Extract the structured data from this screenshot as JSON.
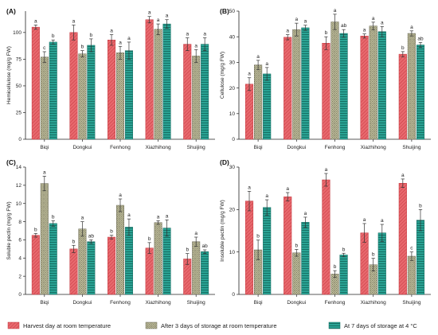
{
  "colors": {
    "harvest": "#e8696e",
    "harvest_line": "#c2333a",
    "room3": "#c9c8a2",
    "room3_line": "#6f6d5a",
    "cold7": "#2aa394",
    "cold7_line": "#136b60"
  },
  "legend": {
    "items": [
      {
        "label": "Harvest day at room temperature"
      },
      {
        "label": "After 3 days of storage at room temperature"
      },
      {
        "label": "At 7 days of storage at 4 °C"
      }
    ]
  },
  "chart_data": [
    {
      "panel": "(A)",
      "type": "bar",
      "ylabel": "Hemicellulose (mg/g FW)",
      "ylim": [
        0,
        120
      ],
      "yticks": [
        0,
        25,
        50,
        75,
        100
      ],
      "categories": [
        "Biqi",
        "Dongkui",
        "Fenhong",
        "Xiazhihong",
        "Shuijing"
      ],
      "series": [
        {
          "name": "Harvest day at room temperature",
          "values": [
            105,
            100,
            93,
            112,
            89
          ],
          "errors": [
            2,
            7,
            5,
            3,
            6
          ],
          "letters": [
            "a",
            "a",
            "a",
            "a",
            "a"
          ]
        },
        {
          "name": "After 3 days of storage at room temperature",
          "values": [
            77,
            80,
            81,
            103,
            78
          ],
          "errors": [
            5,
            3,
            6,
            5,
            6
          ],
          "letters": [
            "c",
            "b",
            "a",
            "a",
            "a"
          ]
        },
        {
          "name": "At 7 days of storage at 4 °C",
          "values": [
            91,
            88,
            83,
            108,
            89
          ],
          "errors": [
            2,
            6,
            8,
            4,
            6
          ],
          "letters": [
            "b",
            "b",
            "a",
            "a",
            "a"
          ]
        }
      ]
    },
    {
      "panel": "(B)",
      "type": "bar",
      "ylabel": "Cellulose (mg/g FW)",
      "ylim": [
        0,
        50
      ],
      "yticks": [
        0,
        10,
        20,
        30,
        40,
        50
      ],
      "categories": [
        "Biqi",
        "Dongkui",
        "Fenhong",
        "Xiazhihong",
        "Shuijing"
      ],
      "series": [
        {
          "name": "Harvest day at room temperature",
          "values": [
            21.5,
            39.8,
            37.5,
            40.3,
            33.2
          ],
          "errors": [
            2.5,
            1.0,
            2.5,
            0.8,
            1.0
          ],
          "letters": [
            "a",
            "a",
            "b",
            "a",
            "b"
          ]
        },
        {
          "name": "After 3 days of storage at room temperature",
          "values": [
            29,
            42.8,
            45.8,
            44.2,
            41.3
          ],
          "errors": [
            1.8,
            2.5,
            3.0,
            1.5,
            1.0
          ],
          "letters": [
            "a",
            "a",
            "a",
            "a",
            "a"
          ]
        },
        {
          "name": "At 7 days of storage at 4 °C",
          "values": [
            25.5,
            43.5,
            41.3,
            42.0,
            36.8
          ],
          "errors": [
            2.5,
            1.0,
            1.5,
            2.0,
            1.0
          ],
          "letters": [
            "a",
            "a",
            "ab",
            "a",
            "ab"
          ]
        }
      ]
    },
    {
      "panel": "(C)",
      "type": "bar",
      "ylabel": "Soluble pectin (mg/g FW)",
      "ylim": [
        0,
        14
      ],
      "yticks": [
        0,
        2,
        4,
        6,
        8,
        10,
        12,
        14
      ],
      "categories": [
        "Biqi",
        "Dongkui",
        "Fenhong",
        "Xiazhihong",
        "Shuijing"
      ],
      "series": [
        {
          "name": "Harvest day at room temperature",
          "values": [
            6.5,
            5.0,
            6.3,
            5.1,
            3.9
          ],
          "errors": [
            0.2,
            0.4,
            0.2,
            0.6,
            0.6
          ],
          "letters": [
            "b",
            "b",
            "b",
            "b",
            "b"
          ]
        },
        {
          "name": "After 3 days of storage at room temperature",
          "values": [
            12.2,
            7.2,
            9.8,
            7.9,
            5.8
          ],
          "errors": [
            0.8,
            0.8,
            0.7,
            0.2,
            0.5
          ],
          "letters": [
            "a",
            "a",
            "a",
            "a",
            "a"
          ]
        },
        {
          "name": "At 7 days of storage at 4 °C",
          "values": [
            7.8,
            5.8,
            7.4,
            7.3,
            4.7
          ],
          "errors": [
            0.3,
            0.2,
            0.9,
            0.9,
            0.2
          ],
          "letters": [
            "b",
            "ab",
            "a",
            "a",
            "ab"
          ]
        }
      ]
    },
    {
      "panel": "(D)",
      "type": "bar",
      "ylabel": "Insoluble pectin (mg/g FW)",
      "ylim": [
        0,
        30
      ],
      "yticks": [
        0,
        10,
        20,
        30
      ],
      "categories": [
        "Biqi",
        "Dongkui",
        "Fenhong",
        "Xiazhihong",
        "Shuijing"
      ],
      "series": [
        {
          "name": "Harvest day at room temperature",
          "values": [
            22,
            23,
            27,
            14.5,
            26.2
          ],
          "errors": [
            2.3,
            1.0,
            1.5,
            2.2,
            1.0
          ],
          "letters": [
            "a",
            "a",
            "a",
            "a",
            "a"
          ]
        },
        {
          "name": "After 3 days of storage at room temperature",
          "values": [
            10.5,
            9.8,
            4.8,
            7.0,
            9.0
          ],
          "errors": [
            2.3,
            0.8,
            0.8,
            1.5,
            1.0
          ],
          "letters": [
            "b",
            "b",
            "b",
            "b",
            "c"
          ]
        },
        {
          "name": "At 7 days of storage at 4 °C",
          "values": [
            20.5,
            17.0,
            9.3,
            14.5,
            17.5
          ],
          "errors": [
            1.8,
            1.2,
            0.4,
            2.0,
            2.5
          ],
          "letters": [
            "a",
            "a",
            "b",
            "a",
            "b"
          ]
        }
      ]
    }
  ]
}
